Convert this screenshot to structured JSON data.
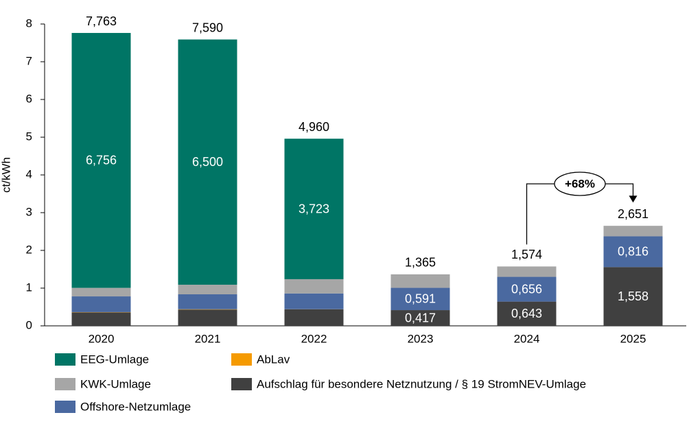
{
  "chart_data": {
    "type": "stacked-bar",
    "categories": [
      "2020",
      "2021",
      "2022",
      "2023",
      "2024",
      "2025"
    ],
    "ylabel": "ct/kWh",
    "ylim": [
      0,
      8
    ],
    "yticks": [
      0,
      1,
      2,
      3,
      4,
      5,
      6,
      7,
      8
    ],
    "grid": false,
    "series": [
      {
        "name": "Aufschlag für besondere Netznutzung / § 19 StromNEV-Umlage",
        "color": "#404040",
        "label_color": "#ffffff",
        "values": [
          0.358,
          0.432,
          0.437,
          0.417,
          0.643,
          1.558
        ],
        "value_labels": [
          null,
          null,
          null,
          "0,417",
          "0,643",
          "1,558"
        ]
      },
      {
        "name": "AbLav",
        "color": "#f59a00",
        "label_color": "#ffffff",
        "values": [
          0.007,
          0.009,
          0.003,
          0,
          0,
          0
        ],
        "value_labels": [
          null,
          null,
          null,
          null,
          null,
          null
        ]
      },
      {
        "name": "Offshore-Netzumlage",
        "color": "#4a69a0",
        "label_color": "#ffffff",
        "values": [
          0.416,
          0.395,
          0.419,
          0.591,
          0.656,
          0.816
        ],
        "value_labels": [
          null,
          null,
          null,
          "0,591",
          "0,656",
          "0,816"
        ]
      },
      {
        "name": "KWK-Umlage",
        "color": "#a6a6a6",
        "label_color": "#ffffff",
        "values": [
          0.226,
          0.254,
          0.378,
          0.357,
          0.275,
          0.277
        ],
        "value_labels": [
          null,
          null,
          null,
          null,
          null,
          null
        ]
      },
      {
        "name": "EEG-Umlage",
        "color": "#007565",
        "label_color": "#ffffff",
        "values": [
          6.756,
          6.5,
          3.723,
          0,
          0,
          0
        ],
        "value_labels": [
          "6,756",
          "6,500",
          "3,723",
          null,
          null,
          null
        ]
      }
    ],
    "totals": {
      "values": [
        7.763,
        7.59,
        4.96,
        1.365,
        1.574,
        2.651
      ],
      "value_labels": [
        "7,763",
        "7,590",
        "4,960",
        "1,365",
        "1,574",
        "2,651"
      ]
    },
    "annotation": {
      "text": "+68%",
      "from": "2024",
      "to": "2025"
    }
  }
}
